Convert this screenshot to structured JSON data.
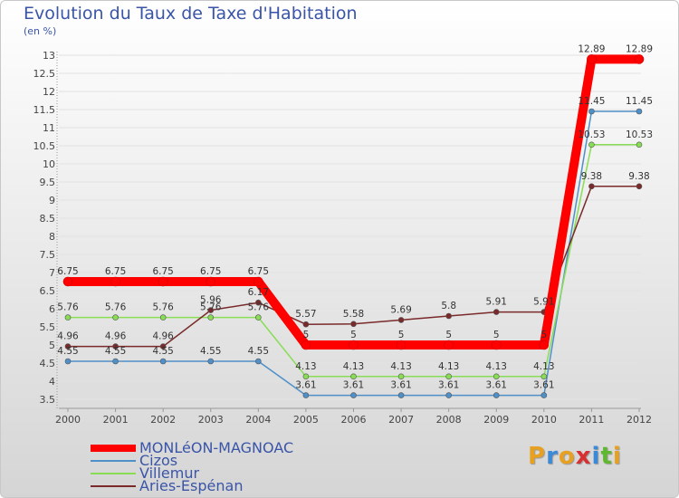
{
  "chart_data": {
    "type": "line",
    "title": "Evolution du Taux de Taxe d'Habitation",
    "ylabel": "(en %)",
    "xlabel": "",
    "x": [
      "2000",
      "2001",
      "2002",
      "2003",
      "2004",
      "2005",
      "2006",
      "2007",
      "2008",
      "2009",
      "2010",
      "2011",
      "2012"
    ],
    "ylim": [
      3.5,
      13
    ],
    "yticks": [
      "3.5",
      "4",
      "4.5",
      "5",
      "5.5",
      "6",
      "6.5",
      "7",
      "7.5",
      "8",
      "8.5",
      "9",
      "9.5",
      "10",
      "10.5",
      "11",
      "11.5",
      "12",
      "12.5",
      "13"
    ],
    "series": [
      {
        "name": "MONLéON-MAGNOAC",
        "color": "#ff0000",
        "values": [
          6.75,
          6.75,
          6.75,
          6.75,
          6.75,
          5,
          5,
          5,
          5,
          5,
          5,
          12.89,
          12.89
        ],
        "labels": [
          "6.75",
          "6.75",
          "6.75",
          "6.75",
          "6.75",
          "5",
          "5",
          "5",
          "5",
          "5",
          "5",
          "12.89",
          "12.89"
        ]
      },
      {
        "name": "Cizos",
        "color": "#5090c8",
        "values": [
          4.55,
          4.55,
          4.55,
          4.55,
          4.55,
          3.61,
          3.61,
          3.61,
          3.61,
          3.61,
          3.61,
          11.45,
          11.45
        ],
        "labels": [
          "4.55",
          "4.55",
          "4.55",
          "4.55",
          "4.55",
          "3.61",
          "3.61",
          "3.61",
          "3.61",
          "3.61",
          "3.61",
          "11.45",
          "11.45"
        ]
      },
      {
        "name": "Villemur",
        "color": "#88dd55",
        "values": [
          5.76,
          5.76,
          5.76,
          5.76,
          5.76,
          4.13,
          4.13,
          4.13,
          4.13,
          4.13,
          4.13,
          10.53,
          10.53
        ],
        "labels": [
          "5.76",
          "5.76",
          "5.76",
          "5.76",
          "5.76",
          "4.13",
          "4.13",
          "4.13",
          "4.13",
          "4.13",
          "4.13",
          "10.53",
          "10.53"
        ]
      },
      {
        "name": "Aries-Espénan",
        "color": "#7a2a2a",
        "values": [
          4.96,
          4.96,
          4.96,
          5.96,
          6.17,
          5.57,
          5.58,
          5.69,
          5.8,
          5.91,
          5.91,
          9.38,
          9.38
        ],
        "labels": [
          "4.96",
          "4.96",
          "4.96",
          "5.96",
          "6.17",
          "5.57",
          "5.58",
          "5.69",
          "5.8",
          "5.91",
          "5.91",
          "9.38",
          "9.38"
        ]
      }
    ]
  },
  "logo": {
    "letters": [
      "P",
      "r",
      "o",
      "x",
      "i",
      "t",
      "i"
    ],
    "colors": [
      "#e8a020",
      "#3a8ad8",
      "#e8a020",
      "#d83030",
      "#3a8ad8",
      "#60b830",
      "#e8a020"
    ]
  }
}
